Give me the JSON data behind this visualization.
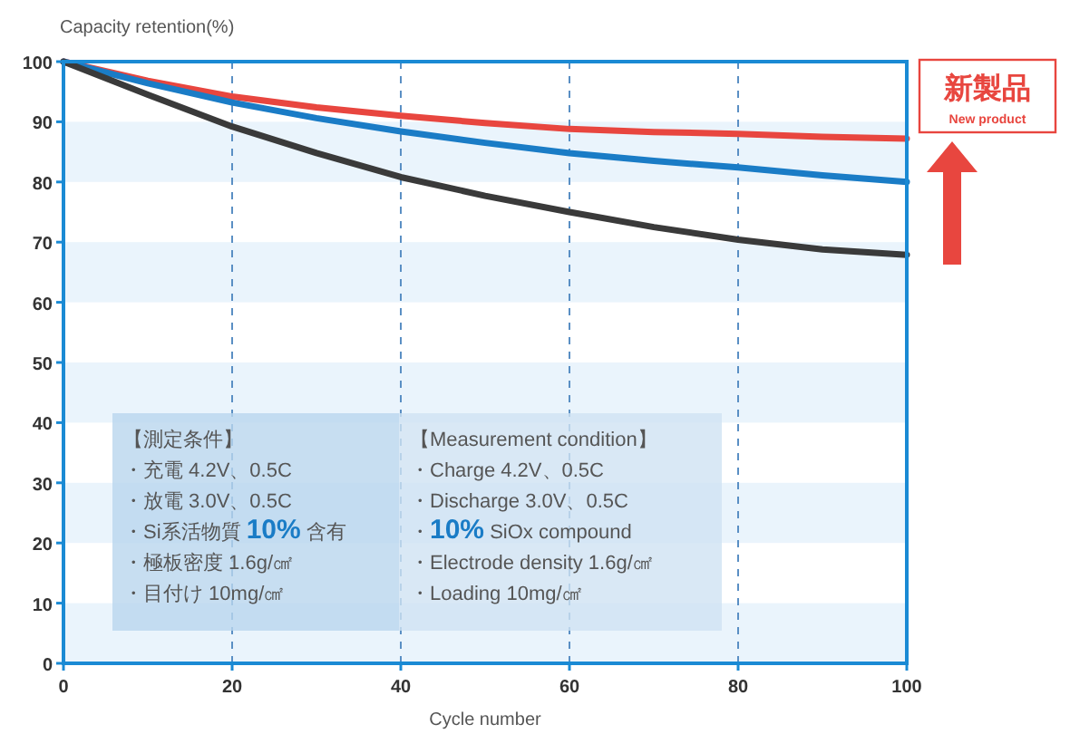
{
  "chart_data": {
    "type": "line",
    "xlabel": "Cycle number",
    "ylabel": "Capacity retention(%)",
    "x": [
      0,
      10,
      20,
      30,
      40,
      50,
      60,
      70,
      80,
      90,
      100
    ],
    "series": [
      {
        "color": "#e8463f",
        "values": [
          100,
          96.8,
          94.2,
          92.4,
          91,
          89.8,
          88.8,
          88.3,
          88,
          87.5,
          87.2
        ]
      },
      {
        "color": "#1a7cc6",
        "values": [
          100,
          96.4,
          93.2,
          90.6,
          88.4,
          86.5,
          84.8,
          83.5,
          82.4,
          81.1,
          80
        ]
      },
      {
        "color": "#3a3a3a",
        "values": [
          100,
          94.5,
          89.2,
          84.8,
          80.8,
          77.7,
          75,
          72.5,
          70.4,
          68.8,
          67.9
        ]
      }
    ],
    "xlim": [
      0,
      100
    ],
    "ylim": [
      0,
      100
    ],
    "xticks": [
      0,
      20,
      40,
      60,
      80,
      100
    ],
    "yticks": [
      0,
      10,
      20,
      30,
      40,
      50,
      60,
      70,
      80,
      90,
      100
    ],
    "grid": "x",
    "annotations": [
      "新製品",
      "New product",
      "【測定条件】",
      "・充電 4.2V、0.5C",
      "・放電 3.0V、0.5C",
      "・Si系活物質 **10%** 含有",
      "・極板密度 1.6g/㎠",
      "・目付け 10mg/㎠",
      "【Measurement condition】",
      "・Charge 4.2V、0.5C",
      "・Discharge 3.0V、0.5C",
      "・**10%** SiOx compound",
      "・Electrode density 1.6g/㎠",
      "・Loading 10mg/㎠"
    ]
  }
}
